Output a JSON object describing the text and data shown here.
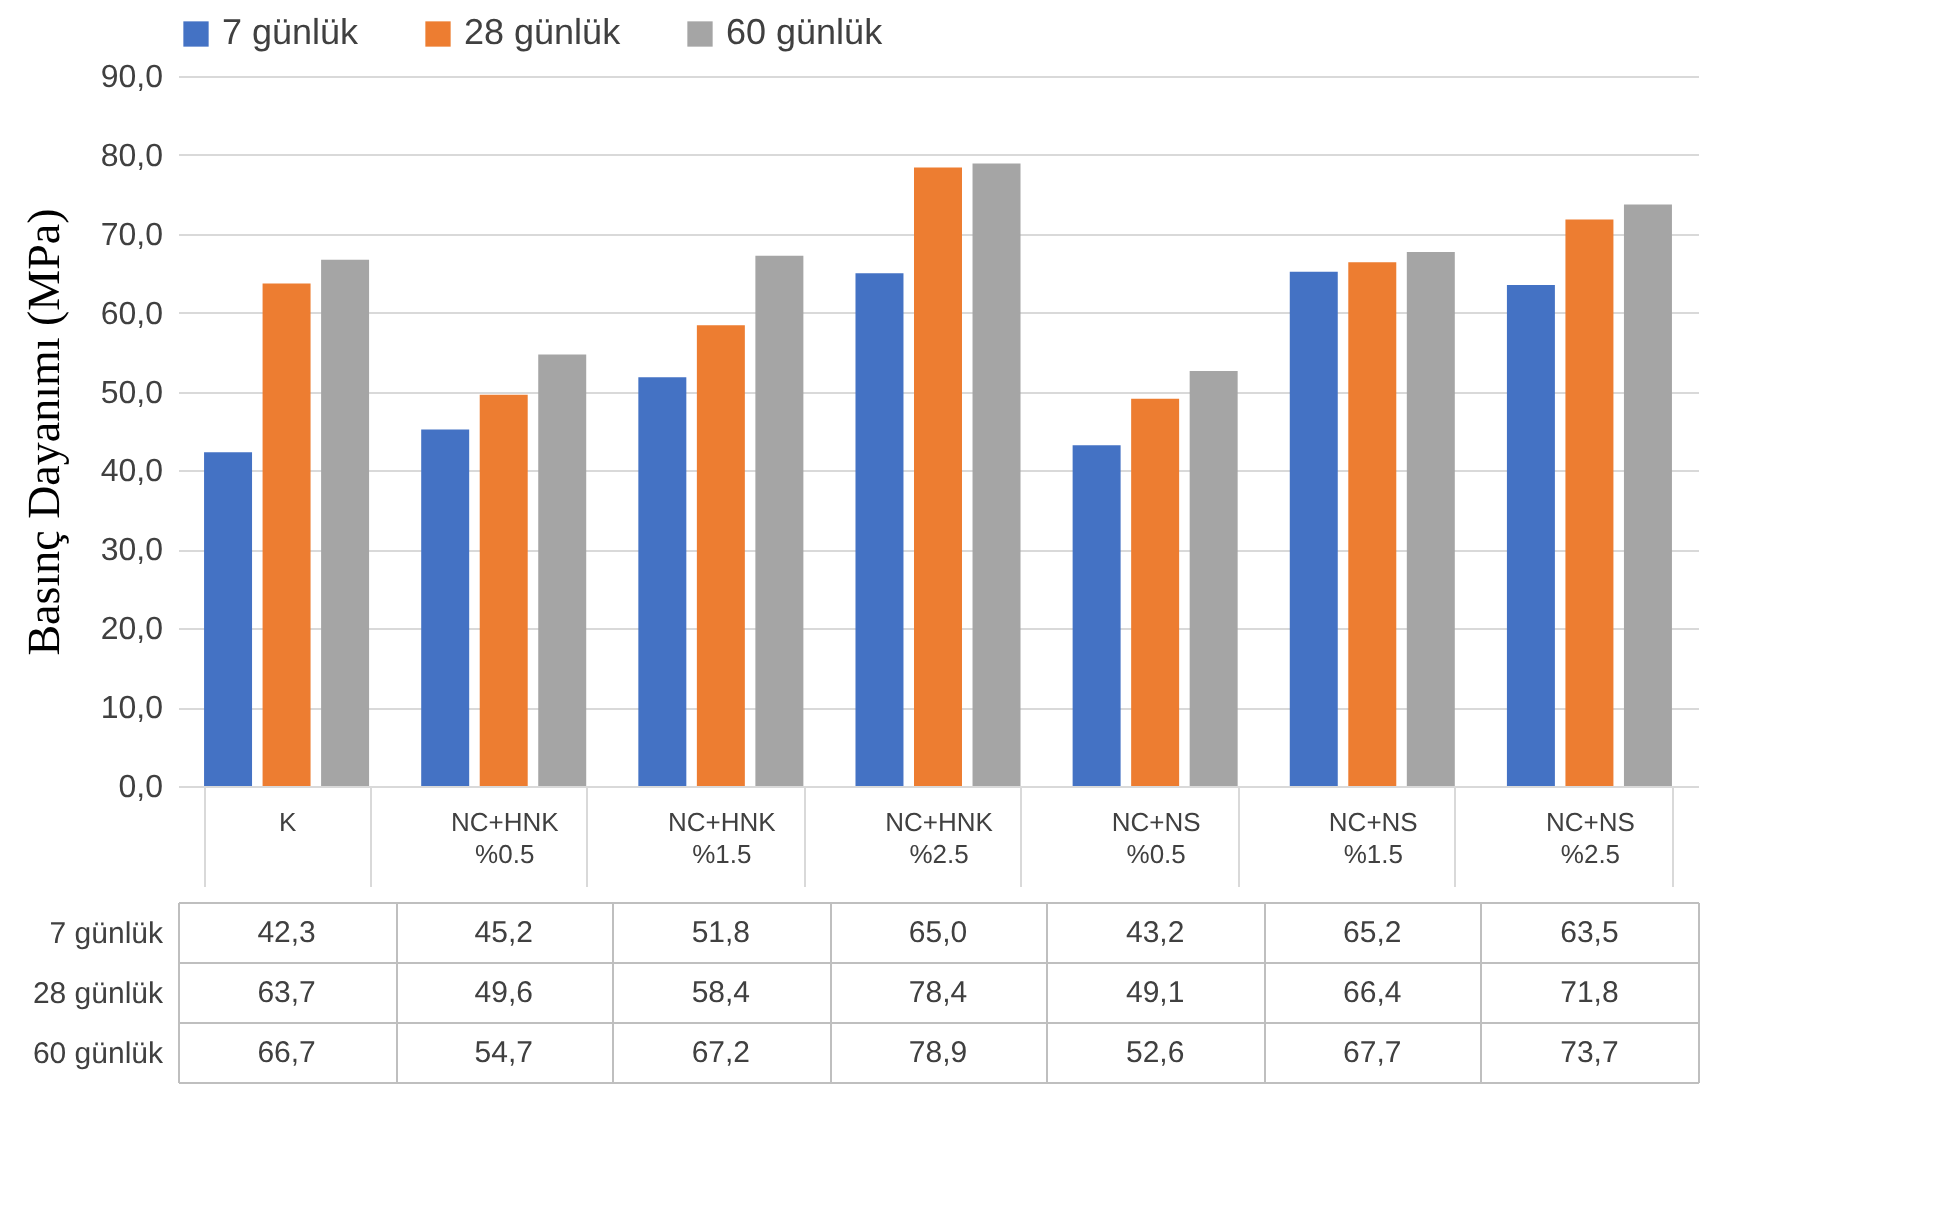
{
  "chart_data": {
    "type": "bar",
    "ylabel": "Basınç Dayanımı (MPa)",
    "categories": [
      "K",
      "NC+HNK %0.5",
      "NC+HNK %1.5",
      "NC+HNK %2.5",
      "NC+NS %0.5",
      "NC+NS %1.5",
      "NC+NS %2.5"
    ],
    "series": [
      {
        "name": "7 günlük",
        "color": "#4472c4",
        "values": [
          42.3,
          45.2,
          51.8,
          65.0,
          43.2,
          65.2,
          63.5
        ],
        "value_labels": [
          "42,3",
          "45,2",
          "51,8",
          "65,0",
          "43,2",
          "65,2",
          "63,5"
        ]
      },
      {
        "name": "28 günlük",
        "color": "#ed7d31",
        "values": [
          63.7,
          49.6,
          58.4,
          78.4,
          49.1,
          66.4,
          71.8
        ],
        "value_labels": [
          "63,7",
          "49,6",
          "58,4",
          "78,4",
          "49,1",
          "66,4",
          "71,8"
        ]
      },
      {
        "name": "60 günlük",
        "color": "#a5a5a5",
        "values": [
          66.7,
          54.7,
          67.2,
          78.9,
          52.6,
          67.7,
          73.7
        ],
        "value_labels": [
          "66,7",
          "54,7",
          "67,2",
          "78,9",
          "52,6",
          "67,7",
          "73,7"
        ]
      }
    ],
    "ylim": [
      0,
      90
    ],
    "yticks": [
      {
        "value": 0,
        "label": "0,0"
      },
      {
        "value": 10,
        "label": "10,0"
      },
      {
        "value": 20,
        "label": "20,0"
      },
      {
        "value": 30,
        "label": "30,0"
      },
      {
        "value": 40,
        "label": "40,0"
      },
      {
        "value": 50,
        "label": "50,0"
      },
      {
        "value": 60,
        "label": "60,0"
      },
      {
        "value": 70,
        "label": "70,0"
      },
      {
        "value": 80,
        "label": "80,0"
      },
      {
        "value": 90,
        "label": "90,0"
      }
    ],
    "grid": "y",
    "legend": "top"
  }
}
